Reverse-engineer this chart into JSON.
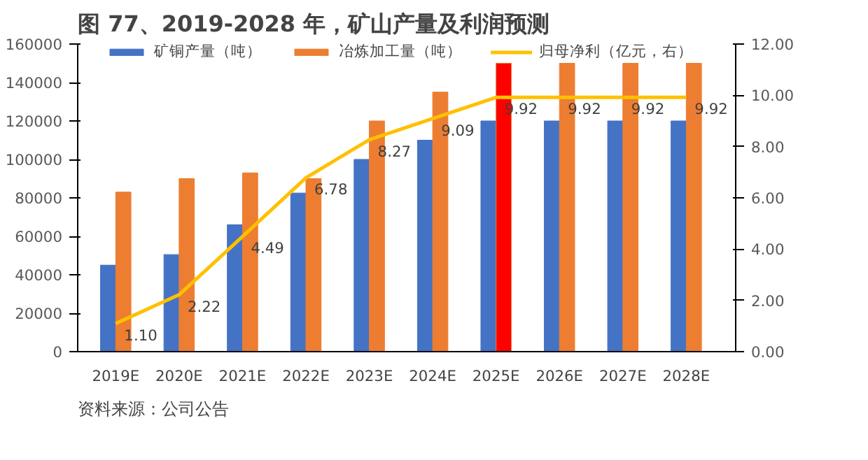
{
  "chart_data": {
    "type": "bar",
    "title": "图 77、2019-2028 年，矿山产量及利润预测",
    "categories": [
      "2019E",
      "2020E",
      "2021E",
      "2022E",
      "2023E",
      "2024E",
      "2025E",
      "2026E",
      "2027E",
      "2028E"
    ],
    "series": [
      {
        "name": "矿铜产量（吨）",
        "color": "#4472c4",
        "values": [
          45000,
          50500,
          66000,
          82500,
          100000,
          110000,
          120000,
          120000,
          120000,
          120000
        ]
      },
      {
        "name": "冶炼加工量（吨）",
        "color": "#ed7d31",
        "colors": [
          "#ed7d31",
          "#ed7d31",
          "#ed7d31",
          "#ed7d31",
          "#ed7d31",
          "#ed7d31",
          "#ff0000",
          "#ed7d31",
          "#ed7d31",
          "#ed7d31"
        ],
        "values": [
          83000,
          90000,
          93000,
          90000,
          120000,
          135000,
          150000,
          150000,
          150000,
          150000
        ]
      },
      {
        "name": "归母净利（亿元，右）",
        "type": "line",
        "axis": "y2",
        "color": "#ffc000",
        "values": [
          1.1,
          2.22,
          4.49,
          6.78,
          8.27,
          9.09,
          9.92,
          9.92,
          9.92,
          9.92
        ],
        "value_labels": [
          "1.10",
          "2.22",
          "4.49",
          "6.78",
          "8.27",
          "9.09",
          "9.92",
          "9.92",
          "9.92",
          "9.92"
        ]
      }
    ],
    "ylim": [
      0,
      160000
    ],
    "yticks": [
      0,
      20000,
      40000,
      60000,
      80000,
      100000,
      120000,
      140000,
      160000
    ],
    "y2lim": [
      0,
      12
    ],
    "y2ticks": [
      {
        "value": 0,
        "label": "0.00"
      },
      {
        "value": 2,
        "label": "2.00"
      },
      {
        "value": 4,
        "label": "4.00"
      },
      {
        "value": 6,
        "label": "6.00"
      },
      {
        "value": 8,
        "label": "8.00"
      },
      {
        "value": 10,
        "label": "10.00"
      },
      {
        "value": 12,
        "label": "12.00"
      }
    ],
    "legend": "top",
    "grid": false,
    "annotations": [
      "资料来源：公司公告"
    ]
  }
}
